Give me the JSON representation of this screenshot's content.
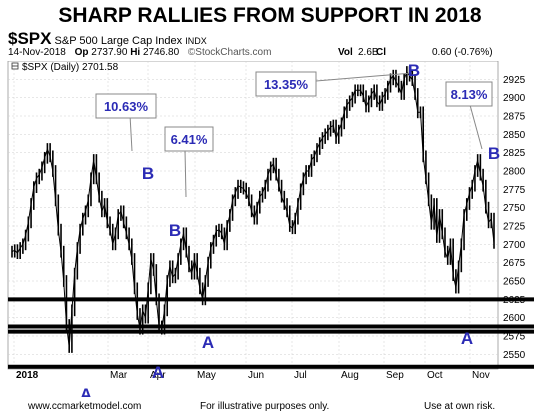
{
  "title": "SHARP RALLIES FROM SUPPORT IN 2018",
  "header": {
    "symbol": "$SPX",
    "index_name": "S&P 500 Large Cap Index",
    "exchange": "INDX",
    "date": "14-Nov-2018",
    "open_label": "Op",
    "open_value": "2737.90",
    "high_label": "Hi",
    "high_value": "2746.80",
    "source": "©StockCharts.com",
    "vol_label": "Vol",
    "vol_value": "2.6B",
    "close_label": "Cl",
    "change": "0.60 (-0.76%)",
    "legend_text": "$SPX (Daily) 2701.58"
  },
  "footer": {
    "site": "www.ccmarketmodel.com",
    "note": "For illustrative purposes only.",
    "risk": "Use at own risk."
  },
  "colors": {
    "price": "#000000",
    "annotation": "#2b2bb5",
    "support": "#000000",
    "callout_border": "#888888",
    "grid": "#cfcfcf"
  },
  "chart_data": {
    "type": "line",
    "y_ticks": [
      "2925",
      "2900",
      "2875",
      "2850",
      "2825",
      "2800",
      "2775",
      "2750",
      "2725",
      "2700",
      "2675",
      "2650",
      "2625",
      "2600",
      "2575",
      "2550"
    ],
    "x_ticks": [
      "2018",
      "Mar",
      "Apr",
      "May",
      "Jun",
      "Jul",
      "Aug",
      "Sep",
      "Oct",
      "Nov"
    ],
    "ylim": [
      2530,
      2950
    ],
    "series": [
      {
        "values": [
          2690,
          2692,
          2688,
          2695,
          2700,
          2712,
          2730,
          2755,
          2778,
          2790,
          2795,
          2805,
          2818,
          2830,
          2820,
          2800,
          2760,
          2720,
          2690,
          2650,
          2590,
          2560,
          2610,
          2660,
          2695,
          2720,
          2735,
          2745,
          2760,
          2790,
          2815,
          2790,
          2765,
          2745,
          2755,
          2730,
          2720,
          2700,
          2715,
          2740,
          2745,
          2730,
          2715,
          2700,
          2680,
          2640,
          2605,
          2585,
          2610,
          2600,
          2640,
          2680,
          2665,
          2625,
          2588,
          2585,
          2610,
          2650,
          2670,
          2655,
          2660,
          2680,
          2700,
          2715,
          2690,
          2670,
          2660,
          2680,
          2660,
          2640,
          2625,
          2650,
          2675,
          2695,
          2705,
          2718,
          2720,
          2715,
          2700,
          2725,
          2740,
          2760,
          2770,
          2780,
          2778,
          2776,
          2770,
          2760,
          2745,
          2735,
          2750,
          2765,
          2770,
          2780,
          2795,
          2805,
          2810,
          2795,
          2780,
          2765,
          2755,
          2745,
          2725,
          2722,
          2735,
          2755,
          2775,
          2790,
          2800,
          2800,
          2815,
          2820,
          2830,
          2838,
          2845,
          2850,
          2855,
          2860,
          2862,
          2845,
          2855,
          2865,
          2880,
          2890,
          2895,
          2900,
          2910,
          2910,
          2910,
          2902,
          2888,
          2895,
          2905,
          2910,
          2895,
          2890,
          2900,
          2905,
          2915,
          2925,
          2930,
          2922,
          2915,
          2905,
          2925,
          2935,
          2930,
          2924,
          2905,
          2880,
          2880,
          2820,
          2790,
          2760,
          2728,
          2755,
          2710,
          2740,
          2715,
          2690,
          2680,
          2700,
          2658,
          2641,
          2670,
          2700,
          2740,
          2755,
          2770,
          2780,
          2800,
          2815,
          2795,
          2780,
          2750,
          2730,
          2735,
          2702
        ]
      }
    ],
    "support_levels": [
      2625,
      2581,
      2588,
      2533
    ],
    "rally_callouts": [
      "10.63%",
      "6.41%",
      "13.35%",
      "8.13%"
    ],
    "point_labels": [
      "A",
      "B",
      "A",
      "B",
      "A",
      "B",
      "A",
      "B"
    ]
  }
}
